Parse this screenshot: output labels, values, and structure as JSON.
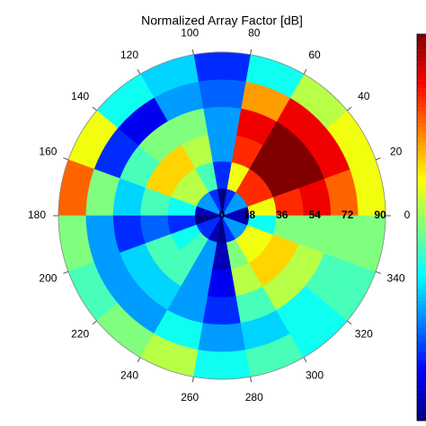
{
  "chart_data": {
    "type": "polar-heatmap",
    "title": "Normalized Array Factor [dB]",
    "angle_bins": [
      0,
      20,
      40,
      60,
      80,
      100,
      120,
      140,
      160,
      180,
      200,
      220,
      240,
      260,
      280,
      300,
      320,
      340,
      360
    ],
    "r_bins": [
      0,
      15,
      30,
      45,
      60,
      75,
      90
    ],
    "values": [
      [
        0.1,
        0.6,
        0.8,
        0.85,
        0.75,
        0.6
      ],
      [
        0.3,
        0.8,
        0.95,
        0.95,
        0.85,
        0.6
      ],
      [
        0.3,
        0.8,
        0.95,
        0.95,
        0.85,
        0.55
      ],
      [
        0.2,
        0.6,
        0.8,
        0.85,
        0.7,
        0.4
      ],
      [
        0.05,
        0.2,
        0.3,
        0.3,
        0.25,
        0.2
      ],
      [
        0.2,
        0.45,
        0.55,
        0.5,
        0.3,
        0.35
      ],
      [
        0.3,
        0.55,
        0.65,
        0.5,
        0.15,
        0.4
      ],
      [
        0.3,
        0.55,
        0.65,
        0.45,
        0.2,
        0.6
      ],
      [
        0.1,
        0.4,
        0.45,
        0.35,
        0.5,
        0.75
      ],
      [
        0.05,
        0.2,
        0.25,
        0.2,
        0.3,
        0.5
      ],
      [
        0.2,
        0.4,
        0.45,
        0.35,
        0.3,
        0.45
      ],
      [
        0.2,
        0.45,
        0.45,
        0.35,
        0.3,
        0.5
      ],
      [
        0.1,
        0.3,
        0.3,
        0.3,
        0.4,
        0.55
      ],
      [
        0.05,
        0.1,
        0.15,
        0.2,
        0.3,
        0.4
      ],
      [
        0.2,
        0.5,
        0.55,
        0.45,
        0.35,
        0.45
      ],
      [
        0.3,
        0.6,
        0.65,
        0.55,
        0.4,
        0.4
      ],
      [
        0.3,
        0.6,
        0.65,
        0.55,
        0.45,
        0.45
      ],
      [
        0.1,
        0.4,
        0.5,
        0.5,
        0.5,
        0.5
      ]
    ],
    "rlim": [
      0,
      90
    ],
    "rticks": [
      0,
      18,
      36,
      54,
      72,
      90
    ],
    "angle_ticks": [
      0,
      20,
      40,
      60,
      80,
      100,
      120,
      140,
      160,
      180,
      200,
      220,
      240,
      260,
      280,
      300,
      320,
      340
    ],
    "colormap": "jet"
  }
}
